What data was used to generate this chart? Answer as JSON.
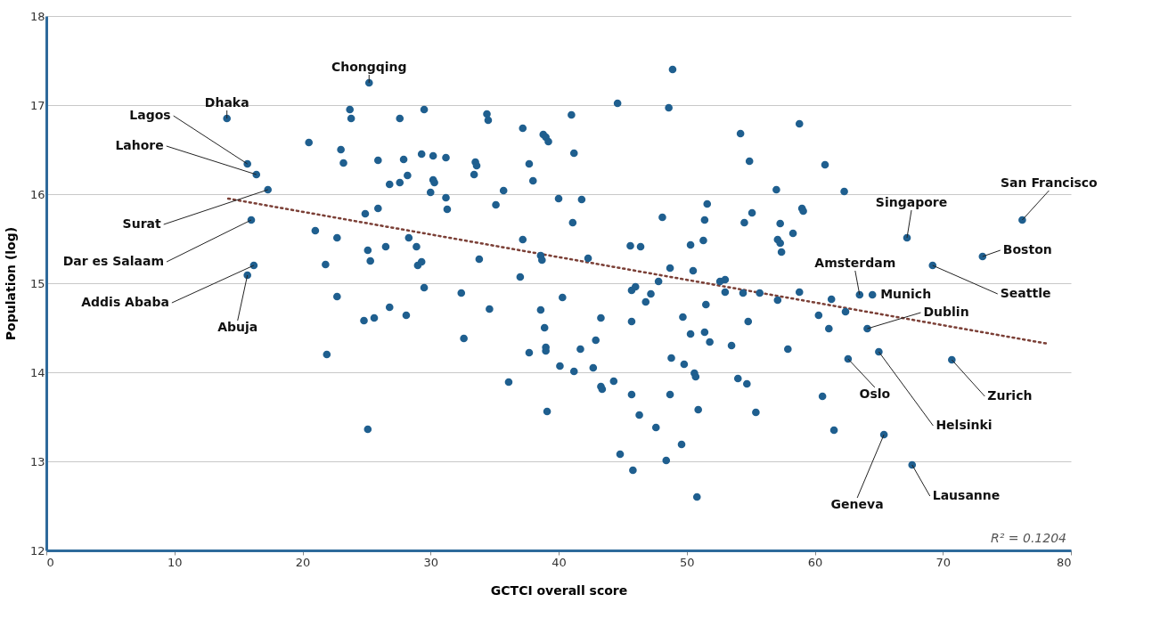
{
  "chart_data": {
    "type": "scatter",
    "xlabel": "GCTCI overall score",
    "ylabel": "Population (log)",
    "xlim": [
      0,
      80
    ],
    "xticks": [
      0,
      10,
      20,
      30,
      40,
      50,
      60,
      70,
      80
    ],
    "ylim": [
      12,
      18
    ],
    "yticks": [
      12,
      13,
      14,
      15,
      16,
      17,
      18
    ],
    "grid": "y",
    "marker": "circle",
    "series": [
      {
        "color": "#1f5f8f",
        "x": [
          14.1,
          15.7,
          16.4,
          17.3,
          16.0,
          16.2,
          15.7,
          25.2,
          20.5,
          23.0,
          23.2,
          23.7,
          23.8,
          25.9,
          26.8,
          27.6,
          27.6,
          27.9,
          28.2,
          29.3,
          30.2,
          31.2,
          29.5,
          30.0,
          30.2,
          30.3,
          31.2,
          31.3,
          33.4,
          33.5,
          33.6,
          34.4,
          34.5,
          35.7,
          35.1,
          37.2,
          37.7,
          38.0,
          40.0,
          38.8,
          39.0,
          39.2,
          41.0,
          41.2,
          44.6,
          48.9,
          48.6,
          54.2,
          54.9,
          58.8,
          60.8,
          62.3,
          21.0,
          22.7,
          21.8,
          24.9,
          25.9,
          25.1,
          25.3,
          26.5,
          28.3,
          28.9,
          29.0,
          29.3,
          22.7,
          24.8,
          25.6,
          26.8,
          28.1,
          29.5,
          21.9,
          25.1,
          32.4,
          32.6,
          33.8,
          34.6,
          37.0,
          37.2,
          38.6,
          38.7,
          38.6,
          38.9,
          39.0,
          39.0,
          37.7,
          36.1,
          39.1,
          40.3,
          40.1,
          41.2,
          41.7,
          42.9,
          43.3,
          43.3,
          43.4,
          42.7,
          42.3,
          41.1,
          41.8,
          45.6,
          46.4,
          48.1,
          48.7,
          47.8,
          47.2,
          45.7,
          46.0,
          46.8,
          45.7,
          44.3,
          45.7,
          46.3,
          47.6,
          44.8,
          45.8,
          48.4,
          49.6,
          50.8,
          48.8,
          48.7,
          49.8,
          50.6,
          50.7,
          50.9,
          49.7,
          50.3,
          51.4,
          51.8,
          51.5,
          53.5,
          54.0,
          54.7,
          55.4,
          54.8,
          55.7,
          51.6,
          51.4,
          51.3,
          50.3,
          50.5,
          52.6,
          53.0,
          53.0,
          54.5,
          55.1,
          54.4,
          57.0,
          57.1,
          57.3,
          57.3,
          57.4,
          58.3,
          57.1,
          58.8,
          59.0,
          59.1,
          57.9,
          60.3,
          61.1,
          61.3,
          62.4,
          60.6,
          61.5,
          76.2,
          67.2,
          73.1,
          69.2,
          63.5,
          64.5,
          64.1,
          62.6,
          65.0,
          70.7,
          65.4,
          67.6
        ],
        "values": [
          16.85,
          16.34,
          16.22,
          16.05,
          15.71,
          15.2,
          15.09,
          17.25,
          16.58,
          16.5,
          16.35,
          16.95,
          16.85,
          16.38,
          16.11,
          16.13,
          16.85,
          16.39,
          16.21,
          16.45,
          16.43,
          16.41,
          16.95,
          16.02,
          16.16,
          16.13,
          15.96,
          15.83,
          16.22,
          16.36,
          16.32,
          16.9,
          16.83,
          16.04,
          15.88,
          16.74,
          16.34,
          16.15,
          15.95,
          16.67,
          16.64,
          16.59,
          16.89,
          16.46,
          17.02,
          17.4,
          16.97,
          16.68,
          16.37,
          16.79,
          16.33,
          16.03,
          15.59,
          15.51,
          15.21,
          15.78,
          15.84,
          15.37,
          15.25,
          15.41,
          15.51,
          15.41,
          15.2,
          15.24,
          14.85,
          14.58,
          14.61,
          14.73,
          14.64,
          14.95,
          14.2,
          13.36,
          14.89,
          14.38,
          15.27,
          14.71,
          15.07,
          15.49,
          15.31,
          15.26,
          14.7,
          14.5,
          14.28,
          14.24,
          14.22,
          13.89,
          13.56,
          14.84,
          14.07,
          14.01,
          14.26,
          14.36,
          14.61,
          13.84,
          13.81,
          14.05,
          15.28,
          15.68,
          15.94,
          15.42,
          15.41,
          15.74,
          15.17,
          15.02,
          14.88,
          14.92,
          14.96,
          14.79,
          14.57,
          13.9,
          13.75,
          13.52,
          13.38,
          13.08,
          12.9,
          13.01,
          13.19,
          12.6,
          14.16,
          13.75,
          14.09,
          13.99,
          13.95,
          13.58,
          14.62,
          14.43,
          14.45,
          14.34,
          14.76,
          14.3,
          13.93,
          13.87,
          13.55,
          14.57,
          14.89,
          15.89,
          15.71,
          15.48,
          15.43,
          15.14,
          15.02,
          15.04,
          14.9,
          15.68,
          15.79,
          14.89,
          16.05,
          15.49,
          15.67,
          15.45,
          15.35,
          15.56,
          14.81,
          14.9,
          15.84,
          15.81,
          14.26,
          14.64,
          14.49,
          14.82,
          14.68,
          13.73,
          13.35,
          15.71,
          15.51,
          15.3,
          15.2,
          14.87,
          14.87,
          14.49,
          14.15,
          14.23,
          14.14,
          13.3,
          12.96
        ]
      },
      {
        "type": "line",
        "color": "#7b3f36",
        "line_style": "dotted",
        "marker": "none",
        "x": [
          14.2,
          78.2
        ],
        "values": [
          15.95,
          14.32
        ]
      }
    ],
    "annotations": [
      {
        "text": "Dhaka",
        "x": 14.1,
        "y": 16.85
      },
      {
        "text": "Lagos",
        "x": 15.7,
        "y": 16.34
      },
      {
        "text": "Lahore",
        "x": 16.4,
        "y": 16.22
      },
      {
        "text": "Surat",
        "x": 17.3,
        "y": 16.05
      },
      {
        "text": "Dar es Salaam",
        "x": 16.0,
        "y": 15.71
      },
      {
        "text": "Addis Ababa",
        "x": 16.2,
        "y": 15.2
      },
      {
        "text": "Abuja",
        "x": 15.7,
        "y": 15.09
      },
      {
        "text": "Chongqing",
        "x": 25.2,
        "y": 17.25
      },
      {
        "text": "San Francisco",
        "x": 76.2,
        "y": 15.71
      },
      {
        "text": "Singapore",
        "x": 67.2,
        "y": 15.51
      },
      {
        "text": "Boston",
        "x": 73.1,
        "y": 15.3
      },
      {
        "text": "Seattle",
        "x": 69.2,
        "y": 15.2
      },
      {
        "text": "Amsterdam",
        "x": 63.5,
        "y": 14.87
      },
      {
        "text": "Munich",
        "x": 64.5,
        "y": 14.87
      },
      {
        "text": "Dublin",
        "x": 64.1,
        "y": 14.49
      },
      {
        "text": "Oslo",
        "x": 62.6,
        "y": 14.15
      },
      {
        "text": "Helsinki",
        "x": 65.0,
        "y": 14.23
      },
      {
        "text": "Zurich",
        "x": 70.7,
        "y": 14.14
      },
      {
        "text": "Geneva",
        "x": 65.4,
        "y": 13.3
      },
      {
        "text": "Lausanne",
        "x": 67.6,
        "y": 12.96
      },
      "R² = 0.1204"
    ]
  }
}
